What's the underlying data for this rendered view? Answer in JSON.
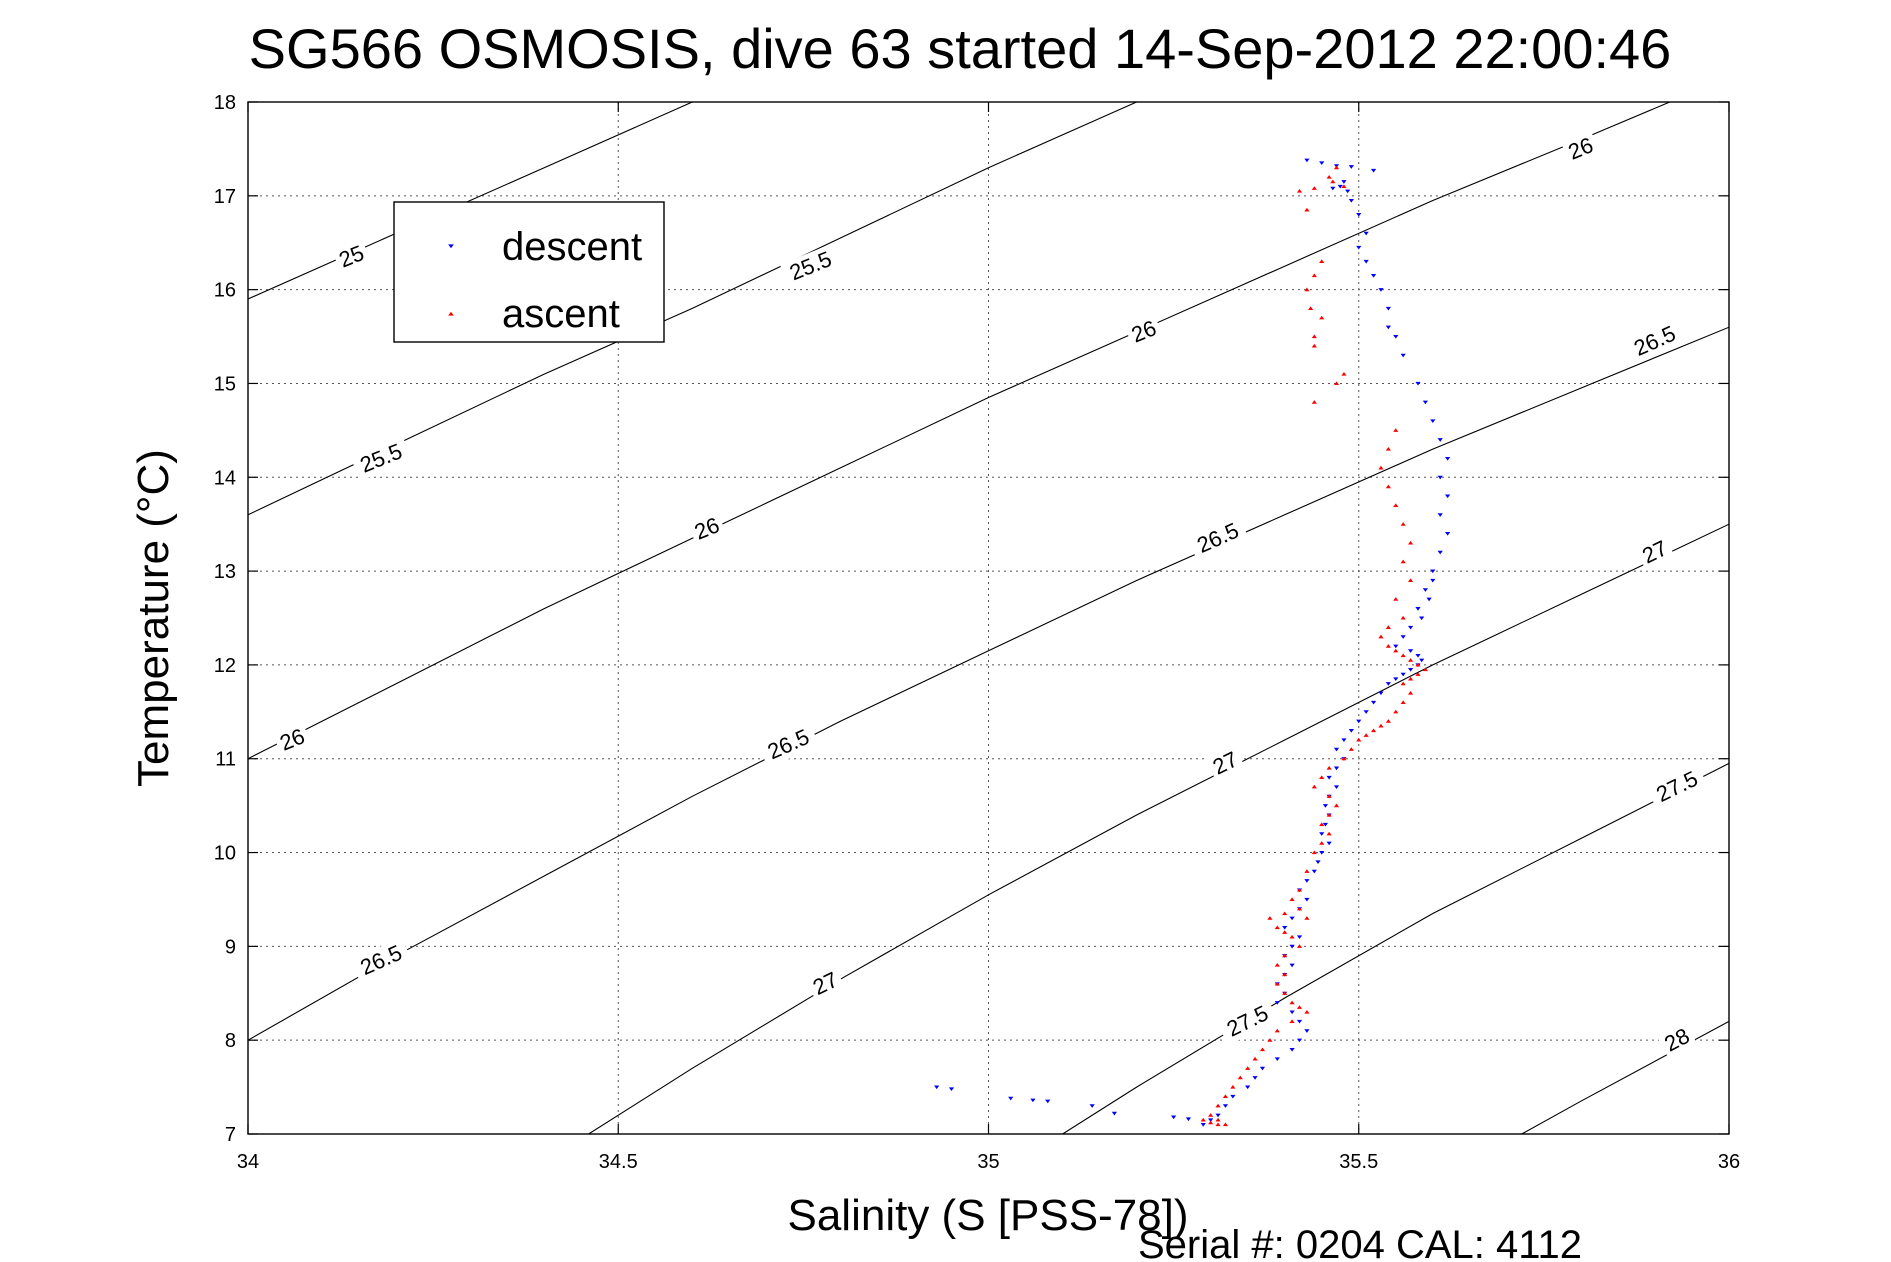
{
  "chart_data": {
    "type": "scatter",
    "title": "SG566 OSMOSIS, dive 63 started 14-Sep-2012 22:00:46",
    "xlabel": "Salinity (S [PSS-78])",
    "ylabel": "Temperature (°C)",
    "xlim": [
      34,
      36
    ],
    "ylim": [
      7,
      18
    ],
    "xticks": [
      34,
      34.5,
      35,
      35.5,
      36
    ],
    "xtick_labels": [
      "34",
      "34.5",
      "35",
      "35.5",
      "36"
    ],
    "yticks": [
      7,
      8,
      9,
      10,
      11,
      12,
      13,
      14,
      15,
      16,
      17,
      18
    ],
    "ytick_labels": [
      "7",
      "8",
      "9",
      "10",
      "11",
      "12",
      "13",
      "14",
      "15",
      "16",
      "17",
      "18"
    ],
    "grid": true,
    "legend_position": "top-left",
    "footer": "Serial #: 0204  CAL: 4112",
    "density_contours": [
      {
        "label": "25",
        "points": [
          [
            34.0,
            15.9
          ],
          [
            34.2,
            16.6
          ],
          [
            34.4,
            17.3
          ],
          [
            34.6,
            18.0
          ]
        ]
      },
      {
        "label": "25.5",
        "points": [
          [
            34.0,
            13.6
          ],
          [
            34.2,
            14.35
          ],
          [
            34.4,
            15.1
          ],
          [
            34.6,
            15.8
          ],
          [
            34.8,
            16.55
          ],
          [
            35.0,
            17.3
          ],
          [
            35.2,
            18.0
          ]
        ]
      },
      {
        "label": "26",
        "points": [
          [
            34.0,
            11.0
          ],
          [
            34.2,
            11.8
          ],
          [
            34.4,
            12.6
          ],
          [
            34.6,
            13.35
          ],
          [
            34.8,
            14.1
          ],
          [
            35.0,
            14.85
          ],
          [
            35.2,
            15.55
          ],
          [
            35.4,
            16.25
          ],
          [
            35.6,
            16.95
          ],
          [
            35.8,
            17.6
          ],
          [
            35.92,
            18.0
          ]
        ]
      },
      {
        "label": "26.5",
        "points": [
          [
            34.0,
            8.0
          ],
          [
            34.2,
            8.9
          ],
          [
            34.4,
            9.75
          ],
          [
            34.6,
            10.6
          ],
          [
            34.8,
            11.4
          ],
          [
            35.0,
            12.15
          ],
          [
            35.2,
            12.9
          ],
          [
            35.4,
            13.6
          ],
          [
            35.6,
            14.3
          ],
          [
            35.8,
            14.95
          ],
          [
            36.0,
            15.6
          ],
          [
            36.05,
            15.75
          ]
        ]
      },
      {
        "label": "27",
        "points": [
          [
            34.46,
            7.0
          ],
          [
            34.6,
            7.7
          ],
          [
            34.8,
            8.65
          ],
          [
            35.0,
            9.55
          ],
          [
            35.2,
            10.4
          ],
          [
            35.4,
            11.2
          ],
          [
            35.6,
            12.0
          ],
          [
            35.8,
            12.75
          ],
          [
            36.0,
            13.5
          ],
          [
            36.05,
            13.7
          ]
        ]
      },
      {
        "label": "27.5",
        "points": [
          [
            35.1,
            7.0
          ],
          [
            35.2,
            7.5
          ],
          [
            35.4,
            8.45
          ],
          [
            35.6,
            9.35
          ],
          [
            35.8,
            10.15
          ],
          [
            36.0,
            10.95
          ],
          [
            36.05,
            11.15
          ]
        ]
      },
      {
        "label": "28",
        "points": [
          [
            35.72,
            7.0
          ],
          [
            35.8,
            7.35
          ],
          [
            36.0,
            8.2
          ],
          [
            36.05,
            8.4
          ]
        ]
      }
    ],
    "contour_labels": [
      {
        "text": "25",
        "x": 34.14,
        "y": 16.35,
        "angle": -22
      },
      {
        "text": "25.5",
        "x": 34.18,
        "y": 14.2,
        "angle": -22
      },
      {
        "text": "25.5",
        "x": 34.76,
        "y": 16.25,
        "angle": -22
      },
      {
        "text": "26",
        "x": 34.06,
        "y": 11.2,
        "angle": -22
      },
      {
        "text": "26",
        "x": 34.62,
        "y": 13.45,
        "angle": -22
      },
      {
        "text": "26",
        "x": 35.21,
        "y": 15.55,
        "angle": -22
      },
      {
        "text": "26",
        "x": 35.8,
        "y": 17.5,
        "angle": -22
      },
      {
        "text": "26.5",
        "x": 34.18,
        "y": 8.85,
        "angle": -24
      },
      {
        "text": "26.5",
        "x": 34.73,
        "y": 11.15,
        "angle": -24
      },
      {
        "text": "26.5",
        "x": 35.31,
        "y": 13.35,
        "angle": -24
      },
      {
        "text": "26.5",
        "x": 35.9,
        "y": 15.45,
        "angle": -24
      },
      {
        "text": "27",
        "x": 34.78,
        "y": 8.6,
        "angle": -26
      },
      {
        "text": "27",
        "x": 35.32,
        "y": 10.95,
        "angle": -26
      },
      {
        "text": "27",
        "x": 35.9,
        "y": 13.2,
        "angle": -26
      },
      {
        "text": "27.5",
        "x": 35.35,
        "y": 8.2,
        "angle": -26
      },
      {
        "text": "27.5",
        "x": 35.93,
        "y": 10.7,
        "angle": -26
      },
      {
        "text": "28",
        "x": 35.93,
        "y": 8.0,
        "angle": -28
      }
    ],
    "series": [
      {
        "name": "descent",
        "color": "#0000ff",
        "marker": "triangle-down",
        "points": [
          [
            35.43,
            17.38
          ],
          [
            35.45,
            17.35
          ],
          [
            35.47,
            17.32
          ],
          [
            35.49,
            17.31
          ],
          [
            35.52,
            17.27
          ],
          [
            35.475,
            17.1
          ],
          [
            35.48,
            17.15
          ],
          [
            35.465,
            17.08
          ],
          [
            35.485,
            17.05
          ],
          [
            35.49,
            16.95
          ],
          [
            35.5,
            16.8
          ],
          [
            35.51,
            16.6
          ],
          [
            35.5,
            16.45
          ],
          [
            35.51,
            16.3
          ],
          [
            35.52,
            16.15
          ],
          [
            35.53,
            16.0
          ],
          [
            35.54,
            15.8
          ],
          [
            35.54,
            15.6
          ],
          [
            35.55,
            15.5
          ],
          [
            35.56,
            15.3
          ],
          [
            35.58,
            15.0
          ],
          [
            35.59,
            14.8
          ],
          [
            35.6,
            14.6
          ],
          [
            35.61,
            14.4
          ],
          [
            35.62,
            14.2
          ],
          [
            35.61,
            14.0
          ],
          [
            35.62,
            13.8
          ],
          [
            35.61,
            13.6
          ],
          [
            35.62,
            13.4
          ],
          [
            35.61,
            13.2
          ],
          [
            35.6,
            13.0
          ],
          [
            35.6,
            12.9
          ],
          [
            35.59,
            12.8
          ],
          [
            35.595,
            12.7
          ],
          [
            35.58,
            12.6
          ],
          [
            35.585,
            12.5
          ],
          [
            35.57,
            12.4
          ],
          [
            35.56,
            12.3
          ],
          [
            35.55,
            12.2
          ],
          [
            35.57,
            12.15
          ],
          [
            35.58,
            12.1
          ],
          [
            35.585,
            12.05
          ],
          [
            35.58,
            12.0
          ],
          [
            35.57,
            11.95
          ],
          [
            35.56,
            11.9
          ],
          [
            35.55,
            11.85
          ],
          [
            35.54,
            11.8
          ],
          [
            35.53,
            11.7
          ],
          [
            35.52,
            11.6
          ],
          [
            35.51,
            11.5
          ],
          [
            35.5,
            11.4
          ],
          [
            35.49,
            11.3
          ],
          [
            35.48,
            11.2
          ],
          [
            35.47,
            11.1
          ],
          [
            35.48,
            11.0
          ],
          [
            35.47,
            10.9
          ],
          [
            35.46,
            10.8
          ],
          [
            35.47,
            10.7
          ],
          [
            35.46,
            10.6
          ],
          [
            35.455,
            10.5
          ],
          [
            35.46,
            10.4
          ],
          [
            35.455,
            10.3
          ],
          [
            35.45,
            10.2
          ],
          [
            35.46,
            10.1
          ],
          [
            35.45,
            10.0
          ],
          [
            35.445,
            9.9
          ],
          [
            35.44,
            9.8
          ],
          [
            35.43,
            9.7
          ],
          [
            35.42,
            9.6
          ],
          [
            35.43,
            9.5
          ],
          [
            35.42,
            9.4
          ],
          [
            35.41,
            9.3
          ],
          [
            35.4,
            9.2
          ],
          [
            35.42,
            9.1
          ],
          [
            35.41,
            9.0
          ],
          [
            35.4,
            8.9
          ],
          [
            35.41,
            8.8
          ],
          [
            35.4,
            8.7
          ],
          [
            35.39,
            8.6
          ],
          [
            35.4,
            8.5
          ],
          [
            35.39,
            8.4
          ],
          [
            35.41,
            8.3
          ],
          [
            35.42,
            8.2
          ],
          [
            35.43,
            8.1
          ],
          [
            35.42,
            8.0
          ],
          [
            35.41,
            7.9
          ],
          [
            35.39,
            7.8
          ],
          [
            35.37,
            7.7
          ],
          [
            35.36,
            7.6
          ],
          [
            35.35,
            7.5
          ],
          [
            35.33,
            7.4
          ],
          [
            35.32,
            7.3
          ],
          [
            35.31,
            7.2
          ],
          [
            35.3,
            7.15
          ],
          [
            35.29,
            7.1
          ],
          [
            34.93,
            7.5
          ],
          [
            34.95,
            7.48
          ],
          [
            35.03,
            7.38
          ],
          [
            35.06,
            7.36
          ],
          [
            35.08,
            7.35
          ],
          [
            35.14,
            7.3
          ],
          [
            35.17,
            7.22
          ],
          [
            35.25,
            7.18
          ],
          [
            35.27,
            7.16
          ]
        ]
      },
      {
        "name": "ascent",
        "color": "#ff0000",
        "marker": "triangle-up",
        "points": [
          [
            35.47,
            17.3
          ],
          [
            35.46,
            17.2
          ],
          [
            35.465,
            17.15
          ],
          [
            35.48,
            17.1
          ],
          [
            35.44,
            17.08
          ],
          [
            35.42,
            17.05
          ],
          [
            35.43,
            16.85
          ],
          [
            35.45,
            16.3
          ],
          [
            35.44,
            16.15
          ],
          [
            35.43,
            16.0
          ],
          [
            35.435,
            15.8
          ],
          [
            35.45,
            15.7
          ],
          [
            35.44,
            15.5
          ],
          [
            35.44,
            15.4
          ],
          [
            35.48,
            15.1
          ],
          [
            35.47,
            15.0
          ],
          [
            35.44,
            14.8
          ],
          [
            35.55,
            14.5
          ],
          [
            35.54,
            14.3
          ],
          [
            35.53,
            14.1
          ],
          [
            35.54,
            13.9
          ],
          [
            35.55,
            13.7
          ],
          [
            35.56,
            13.5
          ],
          [
            35.57,
            13.3
          ],
          [
            35.56,
            13.1
          ],
          [
            35.57,
            12.9
          ],
          [
            35.55,
            12.7
          ],
          [
            35.56,
            12.5
          ],
          [
            35.54,
            12.4
          ],
          [
            35.53,
            12.3
          ],
          [
            35.54,
            12.2
          ],
          [
            35.55,
            12.15
          ],
          [
            35.56,
            12.1
          ],
          [
            35.57,
            12.05
          ],
          [
            35.58,
            12.0
          ],
          [
            35.59,
            11.95
          ],
          [
            35.58,
            11.9
          ],
          [
            35.57,
            11.85
          ],
          [
            35.56,
            11.8
          ],
          [
            35.57,
            11.7
          ],
          [
            35.56,
            11.6
          ],
          [
            35.55,
            11.5
          ],
          [
            35.54,
            11.4
          ],
          [
            35.53,
            11.35
          ],
          [
            35.52,
            11.3
          ],
          [
            35.51,
            11.25
          ],
          [
            35.5,
            11.2
          ],
          [
            35.49,
            11.1
          ],
          [
            35.48,
            11.0
          ],
          [
            35.46,
            10.9
          ],
          [
            35.45,
            10.8
          ],
          [
            35.44,
            10.7
          ],
          [
            35.46,
            10.6
          ],
          [
            35.47,
            10.5
          ],
          [
            35.46,
            10.4
          ],
          [
            35.45,
            10.3
          ],
          [
            35.46,
            10.2
          ],
          [
            35.45,
            10.1
          ],
          [
            35.44,
            10.0
          ],
          [
            35.43,
            9.8
          ],
          [
            35.42,
            9.6
          ],
          [
            35.41,
            9.5
          ],
          [
            35.42,
            9.4
          ],
          [
            35.43,
            9.3
          ],
          [
            35.4,
            9.35
          ],
          [
            35.38,
            9.3
          ],
          [
            35.39,
            9.2
          ],
          [
            35.4,
            9.15
          ],
          [
            35.41,
            9.1
          ],
          [
            35.42,
            9.0
          ],
          [
            35.4,
            8.9
          ],
          [
            35.39,
            8.8
          ],
          [
            35.4,
            8.7
          ],
          [
            35.39,
            8.6
          ],
          [
            35.4,
            8.5
          ],
          [
            35.41,
            8.4
          ],
          [
            35.42,
            8.35
          ],
          [
            35.43,
            8.3
          ],
          [
            35.41,
            8.2
          ],
          [
            35.39,
            8.1
          ],
          [
            35.38,
            8.0
          ],
          [
            35.37,
            7.9
          ],
          [
            35.36,
            7.8
          ],
          [
            35.35,
            7.7
          ],
          [
            35.34,
            7.6
          ],
          [
            35.33,
            7.5
          ],
          [
            35.32,
            7.4
          ],
          [
            35.31,
            7.3
          ],
          [
            35.3,
            7.2
          ],
          [
            35.29,
            7.15
          ],
          [
            35.3,
            7.12
          ],
          [
            35.31,
            7.1
          ],
          [
            35.32,
            7.1
          ],
          [
            35.31,
            7.15
          ]
        ]
      }
    ]
  }
}
